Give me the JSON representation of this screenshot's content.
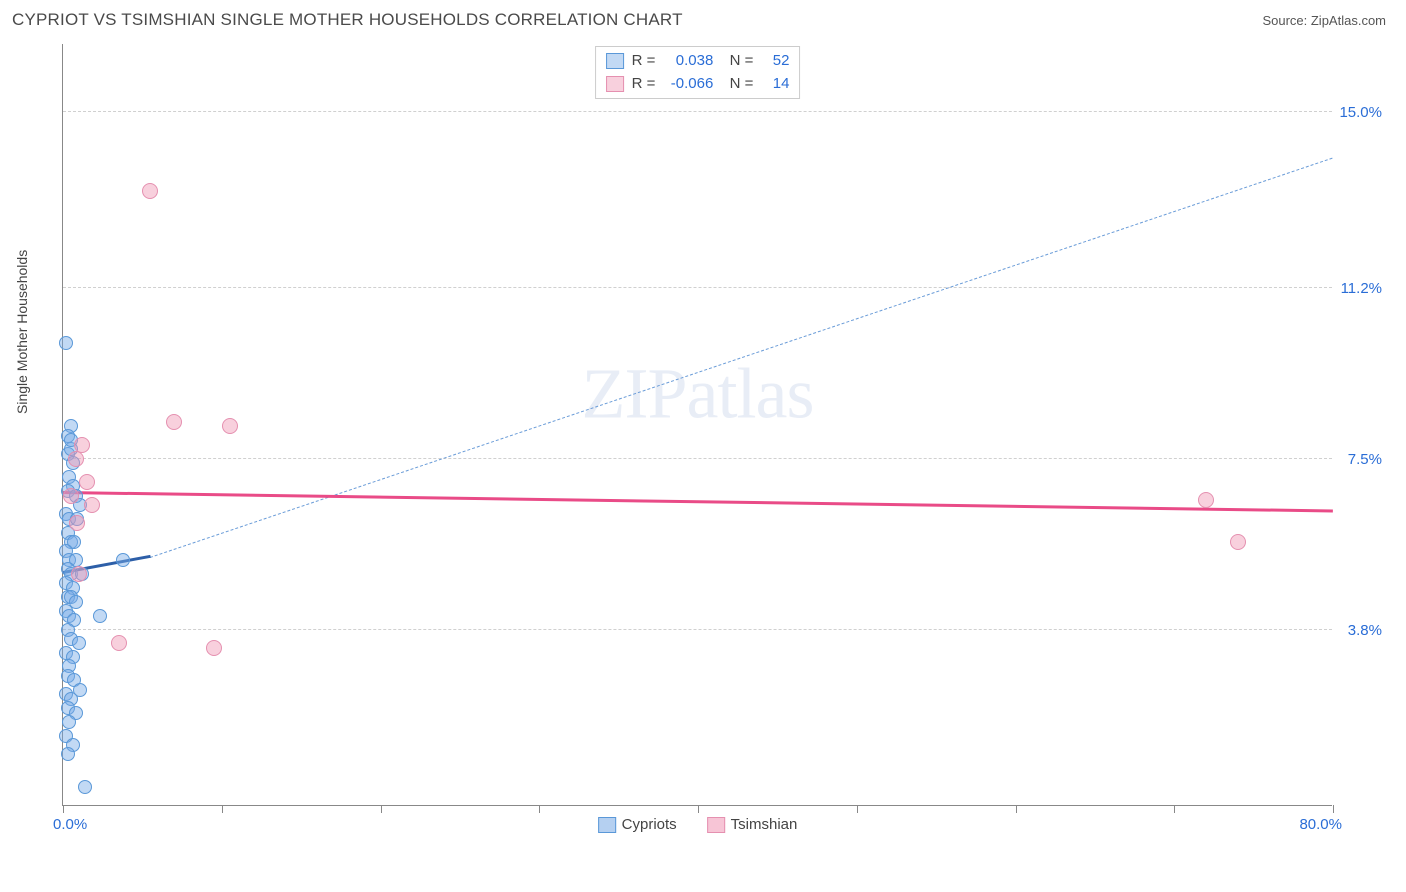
{
  "header": {
    "title": "CYPRIOT VS TSIMSHIAN SINGLE MOTHER HOUSEHOLDS CORRELATION CHART",
    "source": "Source: ZipAtlas.com"
  },
  "watermark": {
    "zip": "ZIP",
    "atlas": "atlas"
  },
  "yaxis": {
    "label": "Single Mother Households"
  },
  "xaxis": {
    "min_label": "0.0%",
    "max_label": "80.0%",
    "min": 0,
    "max": 80,
    "ticks": [
      0,
      10,
      20,
      30,
      40,
      50,
      60,
      70,
      80
    ]
  },
  "ygrid": [
    {
      "value": 3.8,
      "label": "3.8%"
    },
    {
      "value": 7.5,
      "label": "7.5%"
    },
    {
      "value": 11.2,
      "label": "11.2%"
    },
    {
      "value": 15.0,
      "label": "15.0%"
    }
  ],
  "ylim": {
    "min": 0,
    "max": 16.5
  },
  "series": [
    {
      "key": "cypriots",
      "name": "Cypriots",
      "fill": "rgba(120,170,230,0.45)",
      "stroke": "#5a98d8",
      "marker_size": 14,
      "R": "0.038",
      "N": "52",
      "trend": {
        "x1": 0,
        "y1": 5.0,
        "x2": 5.5,
        "y2": 5.35,
        "x2_ext": 80,
        "y2_ext": 14.0,
        "solid_color": "#2d5fa8",
        "dashed_color": "#6a9cd8"
      },
      "points": [
        {
          "x": 0.2,
          "y": 10.0
        },
        {
          "x": 0.5,
          "y": 8.2
        },
        {
          "x": 0.3,
          "y": 8.0
        },
        {
          "x": 0.3,
          "y": 7.6
        },
        {
          "x": 0.5,
          "y": 7.7
        },
        {
          "x": 0.6,
          "y": 7.4
        },
        {
          "x": 0.4,
          "y": 7.1
        },
        {
          "x": 0.6,
          "y": 6.9
        },
        {
          "x": 0.3,
          "y": 6.8
        },
        {
          "x": 0.8,
          "y": 6.7
        },
        {
          "x": 1.1,
          "y": 6.5
        },
        {
          "x": 0.2,
          "y": 6.3
        },
        {
          "x": 0.4,
          "y": 6.2
        },
        {
          "x": 0.9,
          "y": 6.2
        },
        {
          "x": 0.3,
          "y": 5.9
        },
        {
          "x": 0.5,
          "y": 5.7
        },
        {
          "x": 0.7,
          "y": 5.7
        },
        {
          "x": 0.2,
          "y": 5.5
        },
        {
          "x": 0.4,
          "y": 5.3
        },
        {
          "x": 0.8,
          "y": 5.3
        },
        {
          "x": 3.8,
          "y": 5.3
        },
        {
          "x": 0.3,
          "y": 5.1
        },
        {
          "x": 0.5,
          "y": 5.0
        },
        {
          "x": 1.2,
          "y": 5.0
        },
        {
          "x": 0.2,
          "y": 4.8
        },
        {
          "x": 0.6,
          "y": 4.7
        },
        {
          "x": 0.3,
          "y": 4.5
        },
        {
          "x": 0.5,
          "y": 4.5
        },
        {
          "x": 0.8,
          "y": 4.4
        },
        {
          "x": 0.2,
          "y": 4.2
        },
        {
          "x": 0.4,
          "y": 4.1
        },
        {
          "x": 0.7,
          "y": 4.0
        },
        {
          "x": 2.3,
          "y": 4.1
        },
        {
          "x": 0.3,
          "y": 3.8
        },
        {
          "x": 0.5,
          "y": 3.6
        },
        {
          "x": 1.0,
          "y": 3.5
        },
        {
          "x": 0.2,
          "y": 3.3
        },
        {
          "x": 0.6,
          "y": 3.2
        },
        {
          "x": 0.4,
          "y": 3.0
        },
        {
          "x": 0.3,
          "y": 2.8
        },
        {
          "x": 0.7,
          "y": 2.7
        },
        {
          "x": 1.1,
          "y": 2.5
        },
        {
          "x": 0.2,
          "y": 2.4
        },
        {
          "x": 0.5,
          "y": 2.3
        },
        {
          "x": 0.3,
          "y": 2.1
        },
        {
          "x": 0.8,
          "y": 2.0
        },
        {
          "x": 0.4,
          "y": 1.8
        },
        {
          "x": 0.2,
          "y": 1.5
        },
        {
          "x": 0.6,
          "y": 1.3
        },
        {
          "x": 0.3,
          "y": 1.1
        },
        {
          "x": 1.4,
          "y": 0.4
        },
        {
          "x": 0.5,
          "y": 7.9
        }
      ]
    },
    {
      "key": "tsimshian",
      "name": "Tsimshian",
      "fill": "rgba(240,150,180,0.45)",
      "stroke": "#e590b0",
      "marker_size": 16,
      "R": "-0.066",
      "N": "14",
      "trend": {
        "x1": 0,
        "y1": 6.75,
        "x2": 80,
        "y2": 6.35,
        "solid_color": "#e94b87",
        "dashed_color": "#e94b87"
      },
      "points": [
        {
          "x": 5.5,
          "y": 13.3
        },
        {
          "x": 7.0,
          "y": 8.3
        },
        {
          "x": 10.5,
          "y": 8.2
        },
        {
          "x": 1.2,
          "y": 7.8
        },
        {
          "x": 0.8,
          "y": 7.5
        },
        {
          "x": 1.5,
          "y": 7.0
        },
        {
          "x": 0.5,
          "y": 6.7
        },
        {
          "x": 1.8,
          "y": 6.5
        },
        {
          "x": 0.9,
          "y": 6.1
        },
        {
          "x": 72.0,
          "y": 6.6
        },
        {
          "x": 74.0,
          "y": 5.7
        },
        {
          "x": 1.0,
          "y": 5.0
        },
        {
          "x": 3.5,
          "y": 3.5
        },
        {
          "x": 9.5,
          "y": 3.4
        }
      ]
    }
  ],
  "legend": [
    {
      "label": "Cypriots",
      "fill": "rgba(120,170,230,0.55)",
      "stroke": "#5a98d8"
    },
    {
      "label": "Tsimshian",
      "fill": "rgba(240,150,180,0.55)",
      "stroke": "#e590b0"
    }
  ]
}
